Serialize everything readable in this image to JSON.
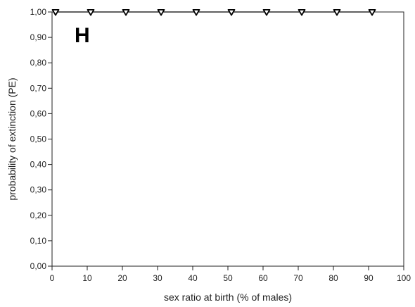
{
  "chart_data": {
    "type": "scatter",
    "title": "",
    "panel_label": "H",
    "xlabel": "sex ratio at birth (% of males)",
    "ylabel": "probability of extinction (PE)",
    "xlim": [
      0,
      100
    ],
    "ylim": [
      0,
      1
    ],
    "x_ticks": [
      0,
      10,
      20,
      30,
      40,
      50,
      60,
      70,
      80,
      90,
      100
    ],
    "x_tick_labels": [
      "0",
      "10",
      "20",
      "30",
      "40",
      "50",
      "60",
      "70",
      "80",
      "90",
      "100"
    ],
    "y_ticks": [
      0,
      0.1,
      0.2,
      0.3,
      0.4,
      0.5,
      0.6,
      0.7,
      0.8,
      0.9,
      1.0
    ],
    "y_tick_labels": [
      "0,00",
      "0,10",
      "0,20",
      "0,30",
      "0,40",
      "0,50",
      "0,60",
      "0,70",
      "0,80",
      "0,90",
      "1,00"
    ],
    "grid": false,
    "legend": "none",
    "series": [
      {
        "marker": "triangle-down-open",
        "line": "solid",
        "color": "#000000",
        "x": [
          1,
          11,
          21,
          31,
          41,
          51,
          61,
          71,
          81,
          91
        ],
        "y": [
          1.0,
          1.0,
          1.0,
          1.0,
          1.0,
          1.0,
          1.0,
          1.0,
          1.0,
          1.0
        ]
      }
    ]
  }
}
